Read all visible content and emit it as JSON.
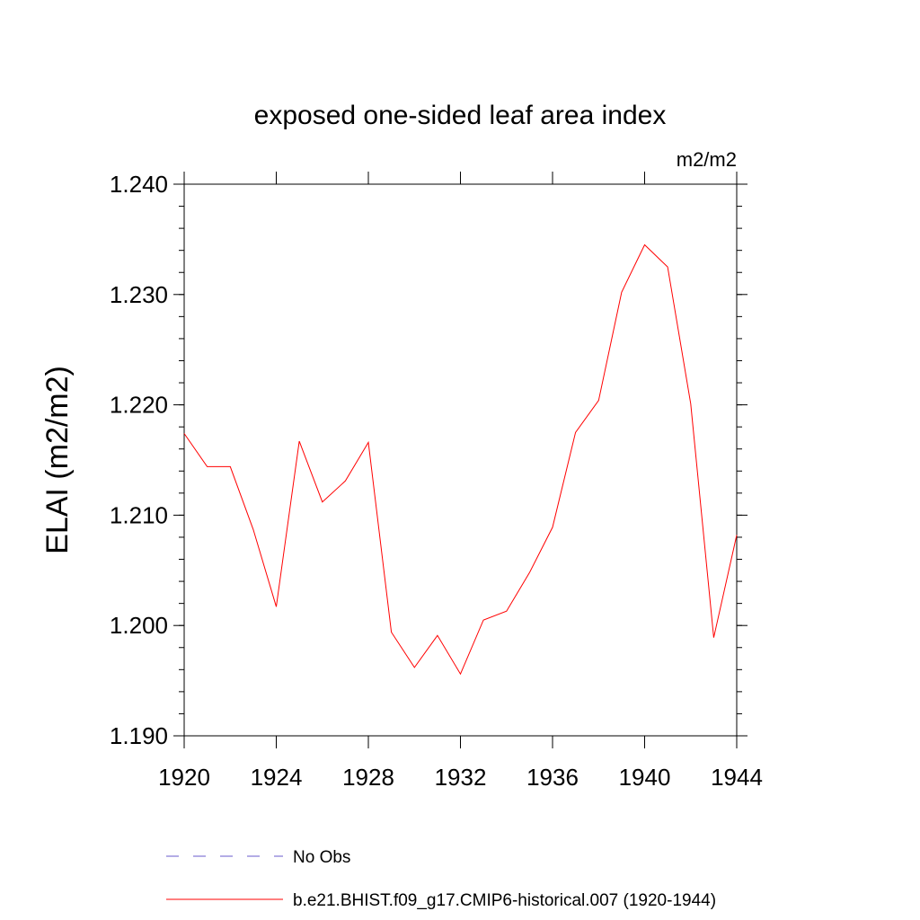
{
  "chart_data": {
    "type": "line",
    "title": "exposed one-sided leaf area index",
    "units_label": "m2/m2",
    "ylabel": "ELAI  (m2/m2)",
    "xlabel": "",
    "xlim": [
      1920,
      1944
    ],
    "ylim": [
      1.19,
      1.24
    ],
    "x_ticks": [
      1920,
      1924,
      1928,
      1932,
      1936,
      1940,
      1944
    ],
    "x_tick_labels": [
      "1920",
      "1924",
      "1928",
      "1932",
      "1936",
      "1940",
      "1944"
    ],
    "y_ticks": [
      1.19,
      1.2,
      1.21,
      1.22,
      1.23,
      1.24
    ],
    "y_tick_labels": [
      "1.190",
      "1.200",
      "1.210",
      "1.220",
      "1.230",
      "1.240"
    ],
    "grid": false,
    "legend_position": "bottom",
    "series": [
      {
        "name": "b.e21.BHIST.f09_g17.CMIP6-historical.007 (1920-1944)",
        "color": "#ff0000",
        "style": "solid",
        "x": [
          1920,
          1921,
          1922,
          1923,
          1924,
          1925,
          1926,
          1927,
          1928,
          1929,
          1930,
          1931,
          1932,
          1933,
          1934,
          1935,
          1936,
          1937,
          1938,
          1939,
          1940,
          1941,
          1942,
          1943,
          1944
        ],
        "values": [
          1.2174,
          1.2144,
          1.2144,
          1.2087,
          1.2017,
          1.2167,
          1.2112,
          1.2131,
          1.2166,
          1.1994,
          1.1962,
          1.1991,
          1.1956,
          1.2005,
          1.2013,
          1.2048,
          1.2089,
          1.2175,
          1.2204,
          1.2302,
          1.2345,
          1.2325,
          1.2201,
          1.1989,
          1.2082
        ]
      }
    ],
    "legend": [
      {
        "label": "No Obs",
        "color": "#6a5acd",
        "style": "dashed"
      },
      {
        "label": "b.e21.BHIST.f09_g17.CMIP6-historical.007 (1920-1944)",
        "color": "#ff0000",
        "style": "solid"
      }
    ]
  }
}
